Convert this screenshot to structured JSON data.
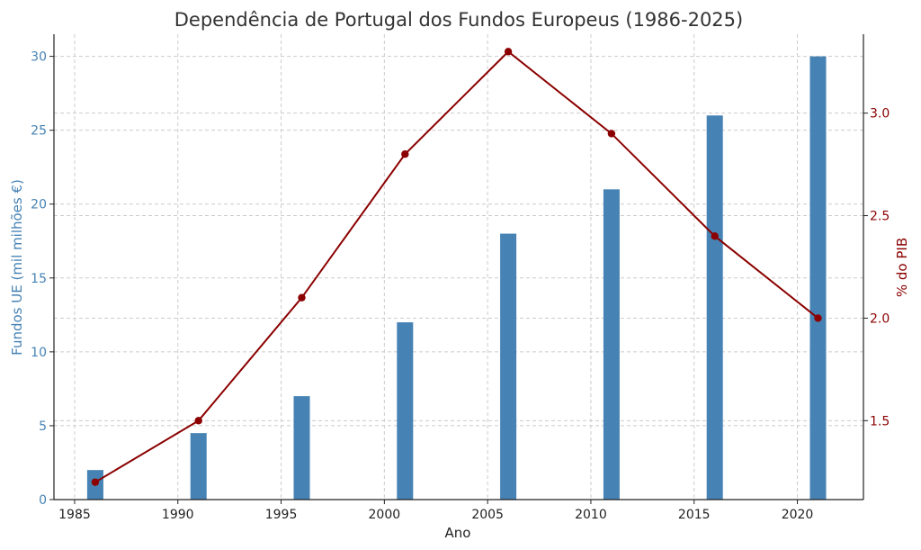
{
  "chart_data": {
    "type": "bar+line",
    "title": "Dependência de Portugal dos Fundos Europeus (1986-2025)",
    "xlabel": "Ano",
    "ylabel_left": "Fundos UE (mil milhões €)",
    "ylabel_right": "% do PIB",
    "x": [
      1986,
      1991,
      1996,
      2001,
      2006,
      2011,
      2016,
      2021
    ],
    "x_ticks": [
      1985,
      1990,
      1995,
      2000,
      2005,
      2010,
      2015,
      2020
    ],
    "xlim": [
      1984,
      2023.2
    ],
    "series": [
      {
        "type": "bar",
        "axis": "left",
        "color": "#4682B4",
        "values": [
          2,
          4.5,
          7,
          12,
          18,
          21,
          26,
          30
        ]
      },
      {
        "type": "line",
        "axis": "right",
        "color": "#8B0000",
        "values": [
          1.2,
          1.5,
          2.1,
          2.8,
          3.3,
          2.9,
          2.4,
          2.0
        ]
      }
    ],
    "y_left_ticks": [
      0,
      5,
      10,
      15,
      20,
      25,
      30
    ],
    "ylim_left": [
      0,
      31.5
    ],
    "y_right_ticks": [
      1.5,
      2.0,
      2.5,
      3.0
    ],
    "ylim_right": [
      1.115,
      3.385
    ],
    "grid": true
  }
}
